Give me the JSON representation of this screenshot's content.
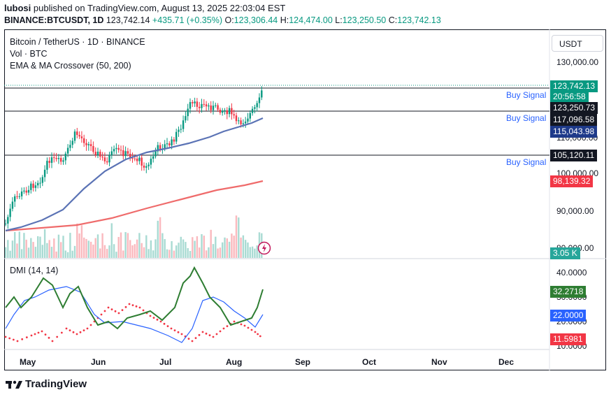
{
  "header": {
    "publisher": "lubosi",
    "published_text": "published on TradingView.com, August 13, 2025 22:03:04 EST",
    "symbol": "BINANCE:BTCUSDT, 1D",
    "last": "123,742.14",
    "change": "+435.71 (+0.35%)",
    "o_label": "O:",
    "o": "123,306.44",
    "h_label": "H:",
    "h": "124,474.00",
    "l_label": "L:",
    "l": "123,250.50",
    "c_label": "C:",
    "c": "123,742.13"
  },
  "legend": {
    "title": "Bitcoin / TetherUS · 1D · BINANCE",
    "volume": "Vol · BTC",
    "indicator": "EMA & MA Crossover (50, 200)"
  },
  "currency_button": "USDT",
  "price_axis": [
    "130,000.00",
    "110,000.00",
    "100,000.00",
    "90,000.00",
    "80,000.00"
  ],
  "price_tags": [
    {
      "text": "123,742.13",
      "color": "#089981"
    },
    {
      "text": "20:56:58",
      "color": "#089981"
    },
    {
      "text": "123,250.73",
      "color": "#131722"
    },
    {
      "text": "117,096.58",
      "color": "#131722"
    },
    {
      "text": "115,043.98",
      "color": "#1e3a8a"
    },
    {
      "text": "105,120.11",
      "color": "#131722"
    },
    {
      "text": "98,139.32",
      "color": "#f23645"
    },
    {
      "text": "3.05 K",
      "color": "#26a69a"
    }
  ],
  "signals": [
    "Buy Signal",
    "Buy Signal",
    "Buy Signal"
  ],
  "dmi": {
    "label": "DMI (14, 14)",
    "axis": [
      "40.0000",
      "30.0000",
      "20.0000",
      "10.0000"
    ],
    "tags": [
      {
        "text": "32.2718",
        "color": "#2e7d32"
      },
      {
        "text": "22.0000",
        "color": "#2962ff"
      },
      {
        "text": "11.5981",
        "color": "#f23645"
      }
    ]
  },
  "time_axis": [
    "May",
    "Jun",
    "Jul",
    "Aug",
    "Sep",
    "Oct",
    "Nov",
    "Dec"
  ],
  "brand": "TradingView",
  "colors": {
    "up": "#089981",
    "down": "#f23645",
    "ema": "#5b73b5",
    "ma": "#ef6b6b",
    "adx": "#2e7d32",
    "diplus": "#2962ff",
    "diminus": "#f23645"
  }
}
